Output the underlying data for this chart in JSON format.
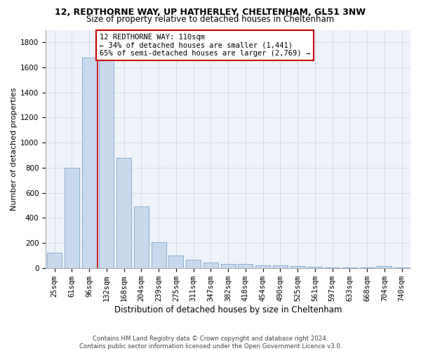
{
  "title1": "12, REDTHORNE WAY, UP HATHERLEY, CHELTENHAM, GL51 3NW",
  "title2": "Size of property relative to detached houses in Cheltenham",
  "xlabel": "Distribution of detached houses by size in Cheltenham",
  "ylabel": "Number of detached properties",
  "categories": [
    "25sqm",
    "61sqm",
    "96sqm",
    "132sqm",
    "168sqm",
    "204sqm",
    "239sqm",
    "275sqm",
    "311sqm",
    "347sqm",
    "382sqm",
    "418sqm",
    "454sqm",
    "490sqm",
    "525sqm",
    "561sqm",
    "597sqm",
    "633sqm",
    "668sqm",
    "704sqm",
    "740sqm"
  ],
  "values": [
    120,
    800,
    1680,
    1680,
    880,
    490,
    205,
    100,
    65,
    45,
    30,
    30,
    22,
    22,
    15,
    8,
    4,
    4,
    4,
    18,
    4
  ],
  "bar_color": "#c9d9ed",
  "bar_edge_color": "#7aa8cc",
  "red_line_x": 2.5,
  "annotation_text": "12 REDTHORNE WAY: 110sqm\n← 34% of detached houses are smaller (1,441)\n65% of semi-detached houses are larger (2,769) →",
  "annotation_box_color": "#ffffff",
  "annotation_box_edge": "#cc0000",
  "footer1": "Contains HM Land Registry data © Crown copyright and database right 2024.",
  "footer2": "Contains public sector information licensed under the Open Government Licence v3.0.",
  "ylim": [
    0,
    1900
  ],
  "yticks": [
    0,
    200,
    400,
    600,
    800,
    1000,
    1200,
    1400,
    1600,
    1800
  ],
  "grid_color": "#d0d8e8",
  "bg_color": "#eef2f9",
  "title1_fontsize": 9,
  "title2_fontsize": 8.5,
  "xlabel_fontsize": 8.5,
  "ylabel_fontsize": 8,
  "tick_fontsize": 7.5,
  "footer_fontsize": 6.2,
  "ann_fontsize": 7.5
}
